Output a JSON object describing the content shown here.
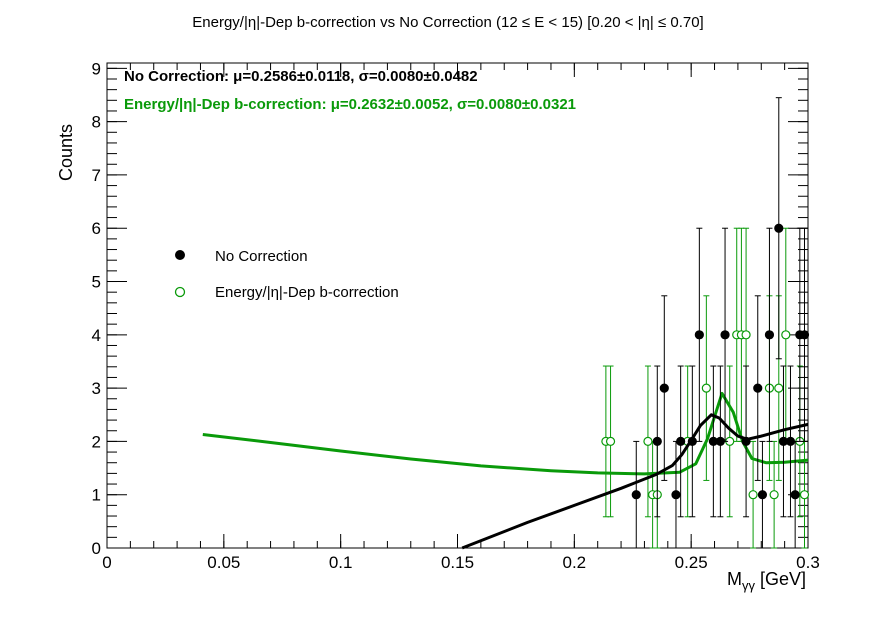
{
  "chart_data": {
    "type": "scatter",
    "title": "Energy/|η|-Dep b-correction vs No Correction   (12 ≤ E < 15)   [0.20 < |η| ≤ 0.70]",
    "xlabel": "M",
    "xlabel_sub": "γγ",
    "xlabel_unit": " [GeV]",
    "ylabel": "Counts",
    "xlim": [
      0,
      0.3
    ],
    "ylim": [
      0,
      9.1
    ],
    "x_ticks": [
      0,
      0.05,
      0.1,
      0.15,
      0.2,
      0.25,
      0.3
    ],
    "x_tick_labels": [
      "0",
      "0.05",
      "0.1",
      "0.15",
      "0.2",
      "0.25",
      "0.3"
    ],
    "y_ticks": [
      0,
      1,
      2,
      3,
      4,
      5,
      6,
      7,
      8,
      9
    ],
    "y_tick_labels": [
      "0",
      "1",
      "2",
      "3",
      "4",
      "5",
      "6",
      "7",
      "8",
      "9"
    ],
    "stats": [
      {
        "text": "No Correction: μ=0.2586±0.0118, σ=0.0080±0.0482",
        "color": "#000000"
      },
      {
        "text": "Energy/|η|-Dep b-correction: μ=0.2632±0.0052, σ=0.0080±0.0321",
        "color": "#0a9a0a"
      }
    ],
    "legend": {
      "placement": "left-middle"
    },
    "series": [
      {
        "name": "No Correction",
        "color": "#000000",
        "marker": "filled-circle",
        "points": [
          {
            "x": 0.2265,
            "y": 1
          },
          {
            "x": 0.2355,
            "y": 2
          },
          {
            "x": 0.2385,
            "y": 3
          },
          {
            "x": 0.2435,
            "y": 1
          },
          {
            "x": 0.2455,
            "y": 2
          },
          {
            "x": 0.2505,
            "y": 2
          },
          {
            "x": 0.2535,
            "y": 4
          },
          {
            "x": 0.2595,
            "y": 2
          },
          {
            "x": 0.2625,
            "y": 2
          },
          {
            "x": 0.2645,
            "y": 4
          },
          {
            "x": 0.2735,
            "y": 2
          },
          {
            "x": 0.2785,
            "y": 3
          },
          {
            "x": 0.2805,
            "y": 1
          },
          {
            "x": 0.2835,
            "y": 4
          },
          {
            "x": 0.2875,
            "y": 6
          },
          {
            "x": 0.2895,
            "y": 2
          },
          {
            "x": 0.2925,
            "y": 2
          },
          {
            "x": 0.2945,
            "y": 1
          },
          {
            "x": 0.2965,
            "y": 4
          },
          {
            "x": 0.2985,
            "y": 4
          }
        ],
        "fit": [
          {
            "x": 0.152,
            "y": 0.0
          },
          {
            "x": 0.18,
            "y": 0.48
          },
          {
            "x": 0.2,
            "y": 0.8
          },
          {
            "x": 0.22,
            "y": 1.12
          },
          {
            "x": 0.235,
            "y": 1.38
          },
          {
            "x": 0.242,
            "y": 1.55
          },
          {
            "x": 0.246,
            "y": 1.75
          },
          {
            "x": 0.25,
            "y": 2.02
          },
          {
            "x": 0.254,
            "y": 2.3
          },
          {
            "x": 0.2586,
            "y": 2.5
          },
          {
            "x": 0.262,
            "y": 2.44
          },
          {
            "x": 0.266,
            "y": 2.25
          },
          {
            "x": 0.27,
            "y": 2.1
          },
          {
            "x": 0.274,
            "y": 2.04
          },
          {
            "x": 0.28,
            "y": 2.1
          },
          {
            "x": 0.29,
            "y": 2.22
          },
          {
            "x": 0.3,
            "y": 2.32
          }
        ]
      },
      {
        "name": "Energy/|η|-Dep b-correction",
        "color": "#0a9a0a",
        "marker": "open-circle",
        "points": [
          {
            "x": 0.2135,
            "y": 2
          },
          {
            "x": 0.2155,
            "y": 2
          },
          {
            "x": 0.2315,
            "y": 2
          },
          {
            "x": 0.2335,
            "y": 1
          },
          {
            "x": 0.2355,
            "y": 1
          },
          {
            "x": 0.2485,
            "y": 2
          },
          {
            "x": 0.2565,
            "y": 3
          },
          {
            "x": 0.2665,
            "y": 2
          },
          {
            "x": 0.2695,
            "y": 4
          },
          {
            "x": 0.2715,
            "y": 4
          },
          {
            "x": 0.2735,
            "y": 4
          },
          {
            "x": 0.2765,
            "y": 1
          },
          {
            "x": 0.2835,
            "y": 3
          },
          {
            "x": 0.2855,
            "y": 1
          },
          {
            "x": 0.2875,
            "y": 3
          },
          {
            "x": 0.2905,
            "y": 4
          },
          {
            "x": 0.2965,
            "y": 2
          },
          {
            "x": 0.2985,
            "y": 1
          }
        ],
        "fit": [
          {
            "x": 0.041,
            "y": 2.13
          },
          {
            "x": 0.07,
            "y": 1.98
          },
          {
            "x": 0.1,
            "y": 1.82
          },
          {
            "x": 0.13,
            "y": 1.67
          },
          {
            "x": 0.16,
            "y": 1.54
          },
          {
            "x": 0.19,
            "y": 1.45
          },
          {
            "x": 0.21,
            "y": 1.41
          },
          {
            "x": 0.23,
            "y": 1.39
          },
          {
            "x": 0.245,
            "y": 1.42
          },
          {
            "x": 0.252,
            "y": 1.58
          },
          {
            "x": 0.257,
            "y": 2.05
          },
          {
            "x": 0.2632,
            "y": 2.9
          },
          {
            "x": 0.268,
            "y": 2.55
          },
          {
            "x": 0.272,
            "y": 2.0
          },
          {
            "x": 0.276,
            "y": 1.68
          },
          {
            "x": 0.282,
            "y": 1.6
          },
          {
            "x": 0.29,
            "y": 1.61
          },
          {
            "x": 0.3,
            "y": 1.65
          }
        ]
      }
    ]
  }
}
